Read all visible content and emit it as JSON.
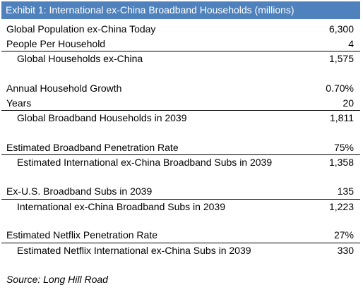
{
  "title": "Exhibit 1: International ex-China Broadband Households (millions)",
  "rows": [
    {
      "label": "Global Population ex-China Today",
      "value": "6,300"
    },
    {
      "label": "People Per Household",
      "value": "4"
    },
    {
      "label": "Global Households ex-China",
      "value": "1,575"
    },
    {
      "label": "Annual Household Growth",
      "value": "0.70%"
    },
    {
      "label": "Years",
      "value": "20"
    },
    {
      "label": "Global Broadband Households in 2039",
      "value": "1,811"
    },
    {
      "label": "Estimated Broadband Penetration Rate",
      "value": "75%"
    },
    {
      "label": "Estimated International ex-China Broadband Subs in 2039",
      "value": "1,358"
    },
    {
      "label": "Ex-U.S. Broadband Subs in 2039",
      "value": "135"
    },
    {
      "label": "International ex-China Broadband Subs in 2039",
      "value": "1,223"
    },
    {
      "label": "Estimated Netflix Penetration Rate",
      "value": "27%"
    },
    {
      "label": "Estimated Netflix International ex-China Subs in 2039",
      "value": "330"
    }
  ],
  "source": "Source: Long Hill Road"
}
